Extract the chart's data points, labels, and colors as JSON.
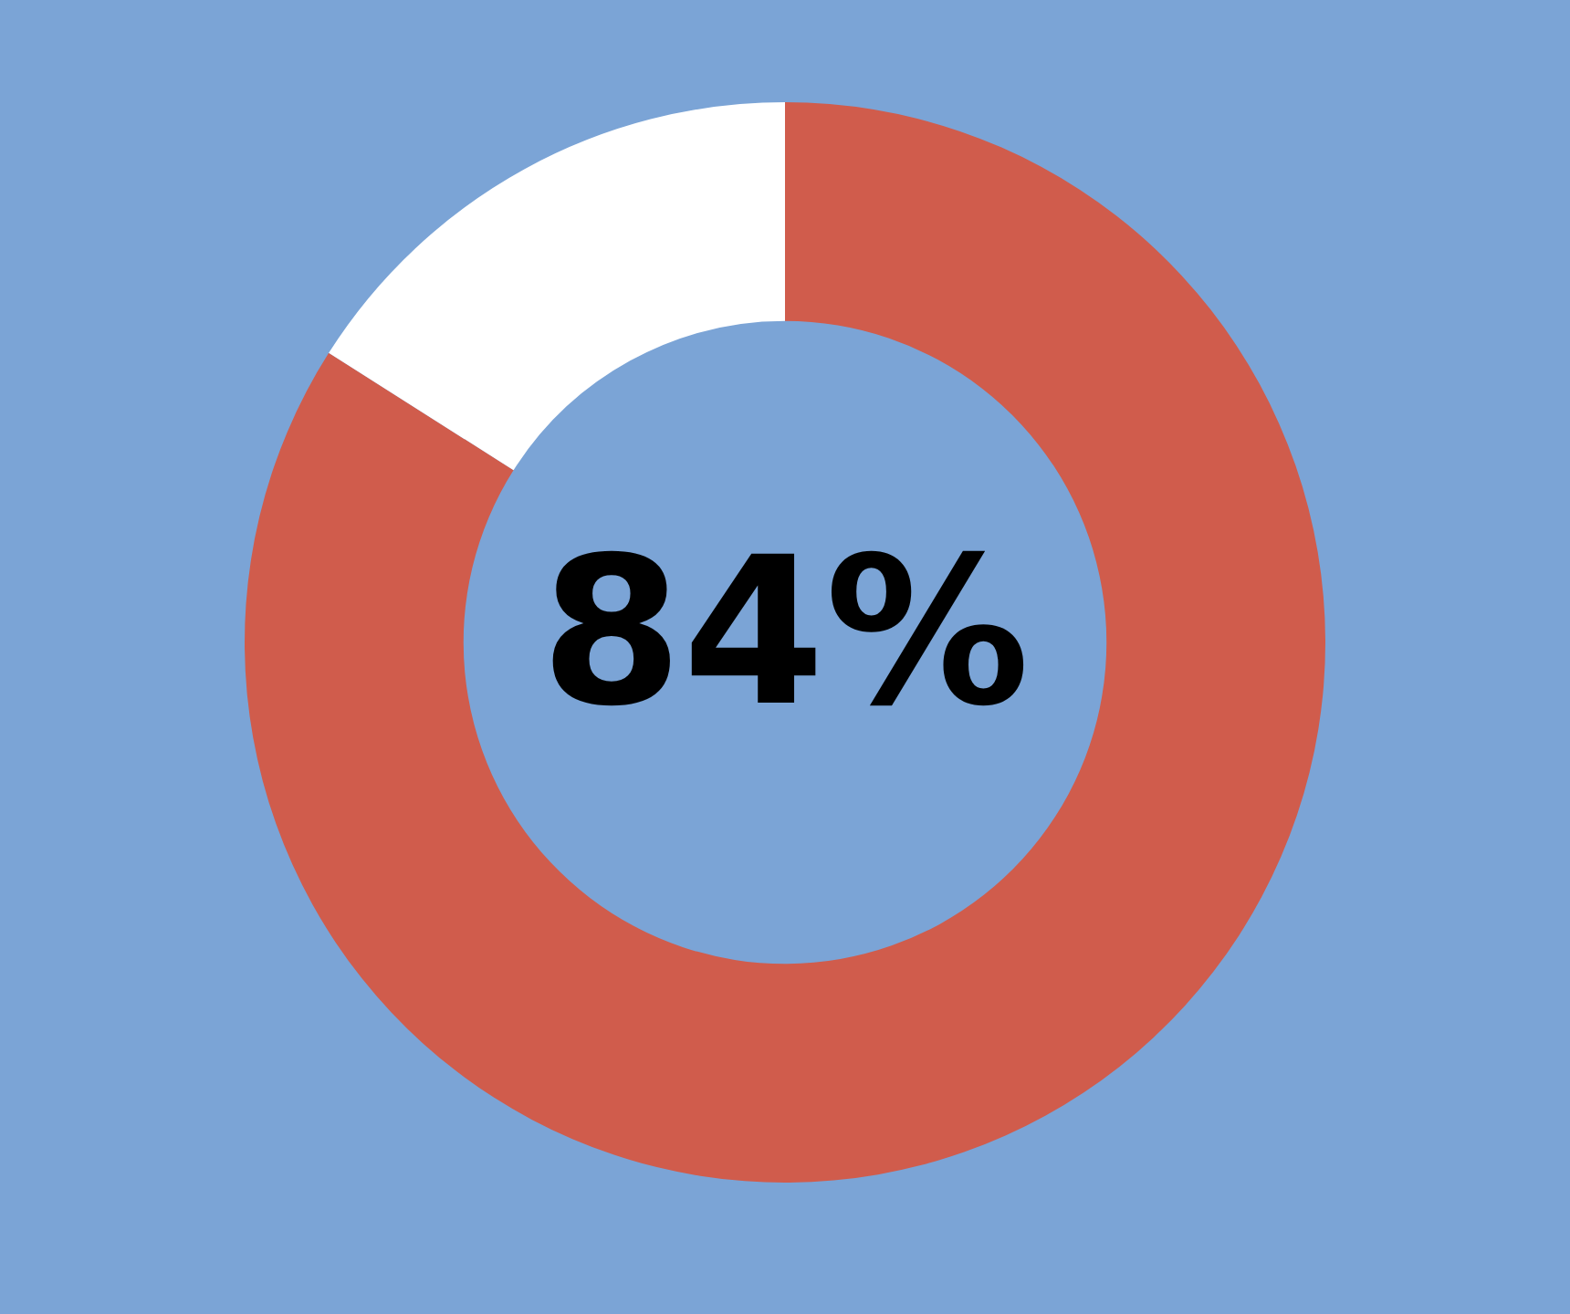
{
  "chart_data": {
    "type": "donut",
    "categories": [
      null,
      null
    ],
    "values": [
      84,
      16
    ],
    "colors": [
      "#d05c4c",
      "#ffffff"
    ],
    "value_labels": [
      "84%",
      null
    ],
    "legend": false
  }
}
